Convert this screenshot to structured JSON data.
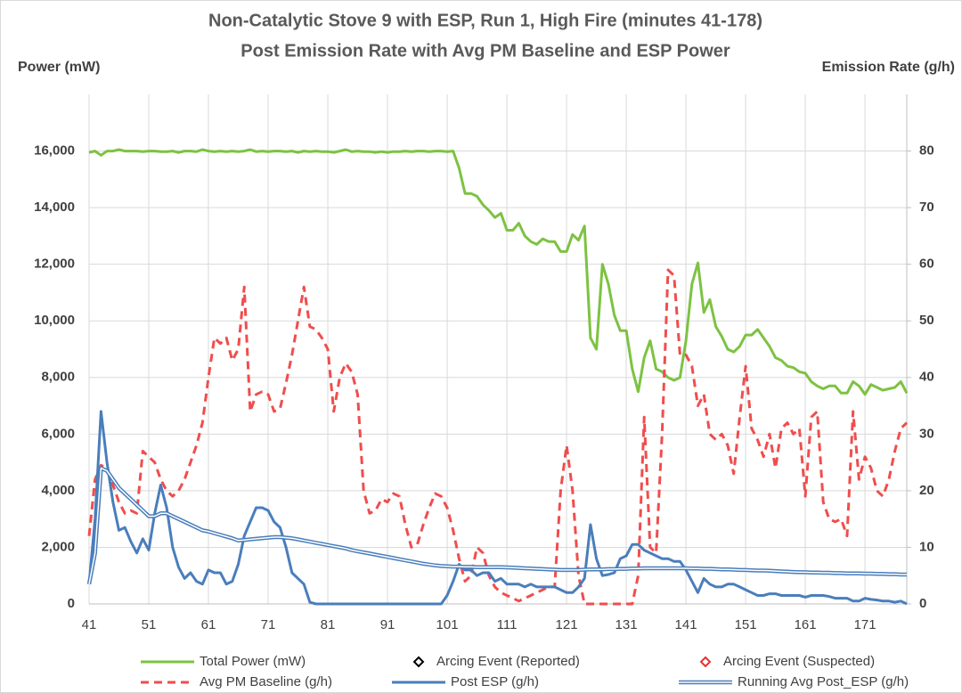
{
  "chart_data": {
    "type": "line",
    "title": "Non-Catalytic Stove 9 with ESP, Run 1, High Fire (minutes 41-178)",
    "subtitle": "Post Emission Rate with Avg PM Baseline and ESP Power",
    "y_label": "Power (mW)",
    "y2_label": "Emission Rate (g/h)",
    "grid": true,
    "x": [
      41,
      42,
      43,
      44,
      45,
      46,
      47,
      48,
      49,
      50,
      51,
      52,
      53,
      54,
      55,
      56,
      57,
      58,
      59,
      60,
      61,
      62,
      63,
      64,
      65,
      66,
      67,
      68,
      69,
      70,
      71,
      72,
      73,
      74,
      75,
      76,
      77,
      78,
      79,
      80,
      81,
      82,
      83,
      84,
      85,
      86,
      87,
      88,
      89,
      90,
      91,
      92,
      93,
      94,
      95,
      96,
      97,
      98,
      99,
      100,
      101,
      102,
      103,
      104,
      105,
      106,
      107,
      108,
      109,
      110,
      111,
      112,
      113,
      114,
      115,
      116,
      117,
      118,
      119,
      120,
      121,
      122,
      123,
      124,
      125,
      126,
      127,
      128,
      129,
      130,
      131,
      132,
      133,
      134,
      135,
      136,
      137,
      138,
      139,
      140,
      141,
      142,
      143,
      144,
      145,
      146,
      147,
      148,
      149,
      150,
      151,
      152,
      153,
      154,
      155,
      156,
      157,
      158,
      159,
      160,
      161,
      162,
      163,
      164,
      165,
      166,
      167,
      168,
      169,
      170,
      171,
      172,
      173,
      174,
      175,
      176,
      177,
      178
    ],
    "xlim": [
      41,
      178
    ],
    "xticks": [
      41,
      51,
      61,
      71,
      81,
      91,
      101,
      111,
      121,
      131,
      141,
      151,
      161,
      171
    ],
    "ylim": [
      0,
      18000
    ],
    "yticks": [
      0,
      {
        "value": 2000,
        "label": "2,000"
      },
      {
        "value": 4000,
        "label": "4,000"
      },
      {
        "value": 6000,
        "label": "6,000"
      },
      {
        "value": 8000,
        "label": "8,000"
      },
      {
        "value": 10000,
        "label": "10,000"
      },
      {
        "value": 12000,
        "label": "12,000"
      },
      {
        "value": 14000,
        "label": "14,000"
      },
      {
        "value": 16000,
        "label": "16,000"
      }
    ],
    "y2lim": [
      0,
      90
    ],
    "y2ticks": [
      0,
      10,
      20,
      30,
      40,
      50,
      60,
      70,
      80
    ],
    "series": [
      {
        "name": "Total Power (mW)",
        "color": "#7dc242",
        "axis": "y",
        "style": "solid",
        "values": [
          15950,
          16000,
          15850,
          16000,
          16000,
          16050,
          16000,
          16000,
          16000,
          15980,
          16000,
          16000,
          15980,
          15980,
          16000,
          15950,
          16000,
          16000,
          15980,
          16050,
          16000,
          15980,
          16000,
          15980,
          16000,
          15980,
          16000,
          16050,
          15980,
          16000,
          15980,
          16000,
          16000,
          15980,
          16000,
          15950,
          16000,
          15980,
          16000,
          15980,
          15980,
          15950,
          16000,
          16050,
          15980,
          16000,
          15980,
          15980,
          15950,
          15980,
          15950,
          15980,
          15980,
          16000,
          15980,
          16000,
          16000,
          15980,
          16000,
          16000,
          15980,
          16000,
          15400,
          14500,
          14500,
          14400,
          14100,
          13900,
          13650,
          13800,
          13200,
          13200,
          13450,
          13000,
          12800,
          12700,
          12900,
          12800,
          12800,
          12450,
          12450,
          13050,
          12850,
          13350,
          9400,
          9000,
          12000,
          11300,
          10200,
          9650,
          9650,
          8300,
          7500,
          8700,
          9300,
          8300,
          8200,
          8000,
          7900,
          8000,
          9300,
          11300,
          12050,
          10300,
          10750,
          9800,
          9450,
          9000,
          8900,
          9100,
          9500,
          9500,
          9700,
          9400,
          9100,
          8700,
          8600,
          8400,
          8350,
          8200,
          8150,
          7850,
          7700,
          7600,
          7700,
          7700,
          7450,
          7450,
          7850,
          7700,
          7400,
          7750,
          7650,
          7550,
          7600,
          7650,
          7850,
          7450
        ]
      },
      {
        "name": "Arcing Event (Reported)",
        "color": "#000000",
        "axis": "y2",
        "style": "diamond",
        "values": [
          null,
          null,
          null,
          null,
          null,
          null,
          null,
          null,
          null,
          null,
          null,
          null,
          null,
          null,
          null,
          null,
          null,
          null,
          null,
          null,
          null,
          null,
          null,
          null,
          null,
          null,
          null,
          null,
          null,
          null,
          null,
          null,
          null,
          null,
          null,
          null,
          null,
          null,
          null,
          null,
          null,
          null,
          null,
          null,
          null,
          null,
          null,
          null,
          null,
          null,
          null,
          null,
          null,
          null,
          null,
          null,
          null,
          null,
          null,
          null,
          null,
          null,
          null,
          null,
          null,
          null,
          null,
          null,
          null,
          null,
          null,
          null,
          null,
          null,
          null,
          null,
          null,
          null,
          null,
          null,
          null,
          null,
          null,
          null,
          null,
          null,
          null,
          null,
          null,
          null,
          null,
          null,
          null,
          null,
          null,
          null,
          null,
          null,
          null,
          null,
          null,
          null,
          null,
          null,
          null,
          null,
          null,
          null,
          null,
          null,
          null,
          null,
          null,
          null,
          null,
          null,
          null,
          null,
          null,
          null,
          null,
          null,
          null,
          null,
          null,
          null,
          null,
          null,
          null,
          null,
          null,
          null,
          null,
          null,
          null,
          null,
          null,
          null
        ]
      },
      {
        "name": "Arcing Event (Suspected)",
        "color": "#e8302f",
        "axis": "y2",
        "style": "diamond",
        "values": [
          null,
          null,
          null,
          null,
          null,
          null,
          null,
          null,
          null,
          null,
          null,
          null,
          null,
          null,
          null,
          null,
          null,
          null,
          null,
          null,
          null,
          null,
          null,
          null,
          null,
          null,
          null,
          null,
          null,
          null,
          null,
          null,
          null,
          null,
          null,
          null,
          null,
          null,
          null,
          null,
          null,
          null,
          null,
          null,
          null,
          null,
          null,
          null,
          null,
          null,
          null,
          null,
          null,
          null,
          null,
          null,
          null,
          null,
          null,
          null,
          null,
          null,
          null,
          null,
          null,
          null,
          null,
          null,
          null,
          null,
          null,
          null,
          null,
          null,
          null,
          null,
          null,
          null,
          null,
          null,
          null,
          null,
          null,
          null,
          null,
          null,
          null,
          null,
          null,
          null,
          null,
          null,
          null,
          null,
          null,
          null,
          null,
          null,
          null,
          null,
          null,
          null,
          null,
          null,
          null,
          null,
          null,
          null,
          null,
          null,
          null,
          null,
          null,
          null,
          null,
          null,
          null,
          null,
          null,
          null,
          null,
          null,
          null,
          null,
          null,
          null,
          null,
          null,
          null,
          null,
          null,
          null,
          null,
          null,
          null,
          null,
          null,
          null
        ]
      },
      {
        "name": "Avg PM Baseline (g/h)",
        "color": "#f04d4d",
        "axis": "y2",
        "style": "dashed",
        "values": [
          12,
          22,
          24.5,
          24,
          21,
          18,
          16,
          16.5,
          16,
          27,
          26,
          25,
          22,
          20,
          19,
          20,
          22,
          25,
          28,
          32,
          40,
          47,
          46,
          47,
          43,
          45,
          56,
          34,
          37,
          37.5,
          37,
          34,
          34.5,
          39,
          44,
          50,
          56,
          49,
          48.5,
          47,
          45,
          34,
          40,
          42.5,
          41,
          37,
          20,
          16,
          16.5,
          18.5,
          18,
          19.5,
          19,
          14,
          10,
          10.5,
          14,
          17,
          19.5,
          19,
          17,
          13,
          8,
          4,
          5,
          10,
          9,
          5,
          3,
          2,
          1.5,
          1,
          0.5,
          1,
          1.5,
          2,
          2.5,
          3,
          3,
          20,
          28,
          20,
          5,
          0,
          0,
          0,
          0,
          0,
          0,
          0,
          0,
          0,
          5,
          33,
          10,
          9,
          30,
          59,
          58,
          44,
          44,
          42,
          35,
          37,
          30,
          29,
          30,
          28,
          23,
          33,
          42,
          31,
          29,
          26,
          30,
          24,
          31,
          32,
          30,
          31,
          19,
          33,
          34,
          18,
          15,
          14.5,
          15,
          12,
          34,
          22,
          26,
          24,
          20,
          19,
          22,
          27,
          31,
          32
        ]
      },
      {
        "name": "Post ESP (g/h)",
        "color": "#4a7ebb",
        "axis": "y2",
        "style": "solid",
        "values": [
          3.5,
          15,
          34,
          25,
          18,
          13,
          13.5,
          11,
          9,
          11.5,
          9.5,
          16,
          21,
          17,
          10,
          6.5,
          4.5,
          5.5,
          4,
          3.5,
          6,
          5.5,
          5.5,
          3.5,
          4,
          7,
          12,
          14.5,
          17,
          17,
          16.5,
          14.5,
          13.5,
          10,
          5.5,
          4.5,
          3.5,
          0.3,
          0,
          0,
          0,
          0,
          0,
          0,
          0,
          0,
          0,
          0,
          0,
          0,
          0,
          0,
          0,
          0,
          0,
          0,
          0,
          0,
          0,
          0,
          1.5,
          4,
          7,
          6,
          6,
          5,
          5.5,
          5.5,
          4,
          4.5,
          3.5,
          3.5,
          3.5,
          3,
          3.5,
          3,
          3,
          3,
          3,
          2.5,
          2,
          2,
          3,
          4.5,
          14,
          8,
          5,
          5.2,
          5.5,
          8,
          8.5,
          10.5,
          10.5,
          9.5,
          9,
          8.5,
          8,
          8,
          7.5,
          7.5,
          6,
          4,
          2,
          4.5,
          3.5,
          3,
          3,
          3.5,
          3.5,
          3,
          2.5,
          2,
          1.5,
          1.5,
          1.8,
          1.8,
          1.5,
          1.5,
          1.5,
          1.5,
          1.2,
          1.5,
          1.5,
          1.5,
          1.3,
          1,
          1,
          1,
          0.5,
          0.5,
          1,
          0.8,
          0.7,
          0.5,
          0.5,
          0.3,
          0.5,
          0
        ]
      },
      {
        "name": "Running Avg Post_ESP (g/h)",
        "color": "#4a7ebb",
        "axis": "y2",
        "style": "double",
        "values": [
          3.5,
          9,
          24,
          23.5,
          22,
          20.5,
          19.5,
          18.5,
          17.5,
          16.5,
          15.5,
          15.5,
          16,
          16,
          15.5,
          15,
          14.5,
          14,
          13.5,
          13,
          12.8,
          12.5,
          12.2,
          11.9,
          11.6,
          11.2,
          11.3,
          11.4,
          11.5,
          11.6,
          11.7,
          11.8,
          11.8,
          11.7,
          11.6,
          11.4,
          11.2,
          11,
          10.8,
          10.6,
          10.4,
          10.2,
          10,
          9.8,
          9.5,
          9.3,
          9.1,
          8.9,
          8.7,
          8.5,
          8.3,
          8.1,
          7.9,
          7.7,
          7.5,
          7.3,
          7.1,
          6.95,
          6.8,
          6.7,
          6.65,
          6.6,
          6.6,
          6.55,
          6.55,
          6.5,
          6.5,
          6.5,
          6.5,
          6.5,
          6.45,
          6.4,
          6.35,
          6.3,
          6.25,
          6.2,
          6.15,
          6.1,
          6.05,
          6,
          6,
          6,
          6,
          6.05,
          6.1,
          6.1,
          6.1,
          6.15,
          6.15,
          6.2,
          6.2,
          6.25,
          6.25,
          6.3,
          6.3,
          6.3,
          6.3,
          6.3,
          6.3,
          6.3,
          6.3,
          6.25,
          6.25,
          6.2,
          6.2,
          6.15,
          6.1,
          6.1,
          6.05,
          6,
          6,
          5.95,
          5.9,
          5.9,
          5.85,
          5.8,
          5.75,
          5.7,
          5.65,
          5.6,
          5.6,
          5.55,
          5.55,
          5.5,
          5.5,
          5.45,
          5.45,
          5.4,
          5.4,
          5.4,
          5.35,
          5.35,
          5.3,
          5.3,
          5.25,
          5.25,
          5.2,
          5.2
        ]
      }
    ]
  }
}
